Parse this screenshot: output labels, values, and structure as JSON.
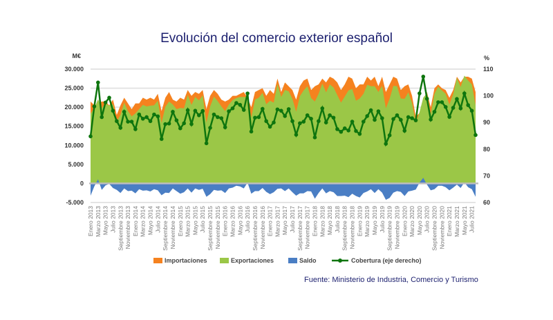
{
  "chart_data": {
    "type": "area",
    "title": "Evolución del comercio exterior español",
    "source": "Fuente: Ministerio de Industria, Comercio y Turismo",
    "ylabel_left": "M€",
    "ylabel_right": "%",
    "ylim_left": [
      -5000,
      30000
    ],
    "ylim_right": [
      60,
      110
    ],
    "yticks_left": [
      "30.000",
      "25.000",
      "20.000",
      "15.000",
      "10.000",
      "5.000",
      "0",
      "-5.000"
    ],
    "yticks_right": [
      "110",
      "100",
      "90",
      "80",
      "70",
      "60"
    ],
    "x_range": [
      "Enero 2013",
      "Agosto 2021"
    ],
    "xtick_labels": [
      "Enero 2013",
      "Marzo 2013",
      "Mayo 2013",
      "Julio 2013",
      "Septiembre 2013",
      "Noviembre 2013",
      "Enero 2014",
      "Marzo 2014",
      "Mayo 2014",
      "Julio 2014",
      "Septiembre 2014",
      "Noviembre 2014",
      "Enero 2015",
      "Marzo 2015",
      "Mayo 2015",
      "Julio 2015",
      "Septiembre 2015",
      "Noviembre 2015",
      "Enero 2016",
      "Marzo 2016",
      "Mayo 2016",
      "Julio 2016",
      "Septiembre 2016",
      "Noviembre 2016",
      "Enero 2017",
      "Marzo 2017",
      "Mayo 2017",
      "Julio 2017",
      "Septiembre 2017",
      "Noviembre 2017",
      "Enero 2018",
      "Marzo 2018",
      "Mayo 2018",
      "Julio 2018",
      "Septiembre 2018",
      "Noviembre 2018",
      "Enero 2019",
      "Marzo 2019",
      "Mayo 2019",
      "Julio 2019",
      "Septiembre 2019",
      "Noviembre 2019",
      "Enero 2020",
      "Marzo 2020",
      "Mayo 2020",
      "Julio 2020",
      "Septiembre 2020",
      "Noviembre 2020",
      "Enero 2021",
      "Marzo 2021",
      "Mayo 2021",
      "Julio 2021"
    ],
    "grid": true,
    "legend_position": "bottom",
    "series": [
      {
        "name": "Importaciones",
        "axis": "left",
        "kind": "area",
        "color": "#F5821F",
        "values": [
          21500,
          20500,
          21000,
          21500,
          21500,
          20500,
          22000,
          18000,
          20500,
          22500,
          21000,
          19500,
          21000,
          21000,
          22500,
          22000,
          22500,
          22000,
          23500,
          19000,
          22500,
          24000,
          22000,
          21500,
          22500,
          22000,
          24500,
          23000,
          24000,
          23500,
          24500,
          19500,
          23000,
          24500,
          23500,
          22000,
          21500,
          22000,
          23000,
          23000,
          23500,
          24000,
          22500,
          20000,
          24000,
          24500,
          25000,
          23000,
          24500,
          23500,
          27500,
          24000,
          26500,
          25500,
          24500,
          22000,
          25500,
          27000,
          27500,
          24500,
          25500,
          26000,
          27500,
          26500,
          28000,
          27500,
          26500,
          24500,
          26000,
          28000,
          27500,
          25000,
          26000,
          26000,
          28000,
          27000,
          28000,
          25500,
          28000,
          24000,
          26000,
          28000,
          27500,
          24500,
          25500,
          26000,
          23000,
          17500,
          18500,
          21000,
          24000,
          20000,
          25000,
          26000,
          25000,
          24500,
          22500,
          24500,
          28000,
          26500,
          28000,
          28000,
          27500,
          24000
        ]
      },
      {
        "name": "Exportaciones",
        "axis": "left",
        "kind": "area",
        "color": "#9BC747",
        "values": [
          18300,
          19700,
          22100,
          19800,
          21000,
          20400,
          20800,
          16300,
          18000,
          21200,
          19000,
          17600,
          18400,
          19500,
          20600,
          20200,
          20400,
          20500,
          21700,
          15900,
          20100,
          21500,
          20700,
          19500,
          19800,
          19700,
          23200,
          20600,
          22700,
          21800,
          23100,
          16000,
          20200,
          22800,
          21600,
          20200,
          19000,
          20700,
          21900,
          22400,
          22700,
          22700,
          22700,
          17300,
          22000,
          22500,
          23800,
          20800,
          21700,
          21200,
          26100,
          22700,
          24500,
          24200,
          22200,
          18800,
          22900,
          24400,
          25500,
          22400,
          21500,
          23500,
          26200,
          23900,
          26000,
          25200,
          23200,
          21200,
          22800,
          24400,
          24800,
          21700,
          22300,
          23500,
          25900,
          25500,
          25500,
          24000,
          25600,
          19700,
          22200,
          25600,
          25500,
          22300,
          22200,
          23900,
          21100,
          15900,
          18700,
          22500,
          23700,
          18200,
          23500,
          25400,
          24400,
          23500,
          20700,
          23400,
          27700,
          25300,
          28300,
          27000,
          26000,
          20500
        ]
      },
      {
        "name": "Saldo",
        "axis": "left",
        "kind": "area",
        "color": "#4A7EC4",
        "values": [
          -3200,
          -800,
          1100,
          -1700,
          -500,
          -100,
          -1200,
          -1700,
          -2500,
          -1300,
          -2000,
          -1900,
          -2600,
          -1500,
          -1900,
          -1800,
          -2100,
          -1500,
          -1800,
          -3100,
          -2400,
          -2500,
          -1300,
          -2000,
          -2700,
          -2300,
          -1300,
          -2400,
          -1300,
          -1700,
          -1400,
          -3500,
          -2800,
          -1700,
          -1900,
          -1800,
          -2500,
          -1300,
          -1100,
          -600,
          -800,
          -1300,
          200,
          -2700,
          -2000,
          -2000,
          -1200,
          -2200,
          -2800,
          -2300,
          -1400,
          -1300,
          -2000,
          -1300,
          -2300,
          -3200,
          -2600,
          -2600,
          -2000,
          -2100,
          -4000,
          -2500,
          -1300,
          -2600,
          -2000,
          -2300,
          -3300,
          -3300,
          -3200,
          -3600,
          -2700,
          -3300,
          -3700,
          -2500,
          -2100,
          -1500,
          -2500,
          -1500,
          -2400,
          -4300,
          -3800,
          -2400,
          -2000,
          -2200,
          -3300,
          -2100,
          -1900,
          -1600,
          200,
          1500,
          -300,
          -1800,
          -1500,
          -600,
          -600,
          -1000,
          -1800,
          -1100,
          -300,
          -1200,
          300,
          -1000,
          -1500,
          -3500
        ]
      },
      {
        "name": "Cobertura (eje derecho)",
        "axis": "right",
        "kind": "line",
        "color": "#0E750E",
        "values": [
          84.8,
          96,
          105,
          92,
          97.5,
          99.3,
          94.4,
          90.5,
          88,
          94,
          90.3,
          90.3,
          87.5,
          93,
          91.4,
          92,
          90.5,
          93,
          92.3,
          83.8,
          89.4,
          89.6,
          94,
          90.8,
          87.8,
          89.7,
          94.6,
          89.4,
          94.4,
          92.7,
          94.3,
          82.2,
          88,
          93,
          92,
          91.6,
          88.2,
          94.2,
          95.3,
          97.3,
          96.6,
          94.7,
          100.9,
          86.6,
          91.8,
          92,
          95.1,
          90.5,
          88.4,
          90,
          94.9,
          94.4,
          92.4,
          95,
          90.5,
          85.4,
          89.7,
          90.3,
          92.7,
          91.4,
          84.4,
          90.5,
          95.3,
          90,
          92.7,
          91.8,
          87.5,
          86.5,
          87.8,
          87,
          90.3,
          86.8,
          85.7,
          90.3,
          92.4,
          94.6,
          91,
          94.2,
          91.6,
          82,
          85.2,
          91.3,
          92.7,
          91,
          86.9,
          92,
          91.6,
          90.8,
          100.9,
          107.2,
          98.9,
          91.1,
          94,
          97.6,
          97.6,
          95.8,
          92.1,
          95.5,
          98.8,
          95.3,
          100.9,
          96.5,
          94.4,
          85.3
        ]
      }
    ]
  }
}
